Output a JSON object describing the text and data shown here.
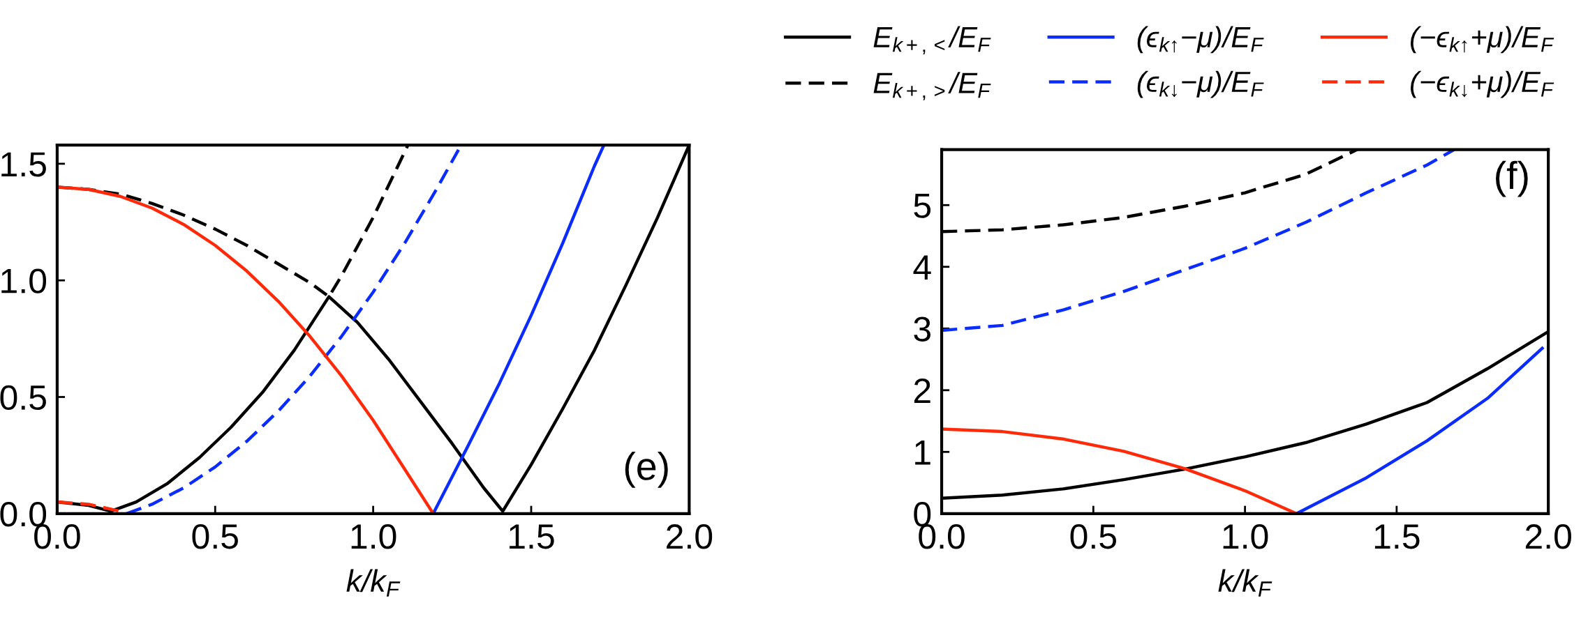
{
  "chart_data": [
    {
      "type": "line",
      "xlabel": "k/k$_{F}$",
      "xlim": [
        0,
        2.0
      ],
      "ylim": [
        0,
        1.58
      ],
      "xticks": [
        {
          "value": 0,
          "label": "0.0"
        },
        {
          "value": 0.5,
          "label": "0.5"
        },
        {
          "value": 1,
          "label": "1.0"
        },
        {
          "value": 1.5,
          "label": "1.5"
        },
        {
          "value": 2,
          "label": "2.0"
        }
      ],
      "yticks": [
        {
          "value": 0,
          "label": "0.0"
        },
        0.5,
        {
          "value": 1,
          "label": "1.0"
        },
        1.5
      ],
      "legend": "top right",
      "grid": false,
      "annotations": [
        "(e)"
      ],
      "series": [
        {
          "name": "E$_{k+,<}$/E$_{F}$",
          "color": "#000000",
          "line_style": "solid",
          "x": [
            0,
            0.1,
            0.17,
            0.25,
            0.35,
            0.45,
            0.55,
            0.65,
            0.75,
            0.86,
            0.95,
            1.05,
            1.15,
            1.25,
            1.35,
            1.41,
            1.5,
            1.6,
            1.7,
            1.8,
            1.9,
            2.0
          ],
          "values": [
            0.05,
            0.035,
            0.01,
            0.05,
            0.13,
            0.24,
            0.37,
            0.52,
            0.7,
            0.93,
            0.82,
            0.66,
            0.48,
            0.3,
            0.11,
            0.01,
            0.21,
            0.45,
            0.7,
            0.98,
            1.27,
            1.58
          ]
        },
        {
          "name": "E$_{k+,>}$/E$_{F}$",
          "color": "#000000",
          "line_style": "dashed",
          "x": [
            0,
            0.1,
            0.2,
            0.3,
            0.4,
            0.5,
            0.6,
            0.7,
            0.8,
            0.86,
            0.9,
            1.0,
            1.11
          ],
          "values": [
            1.4,
            1.39,
            1.37,
            1.33,
            1.28,
            1.22,
            1.15,
            1.07,
            0.99,
            0.93,
            1.02,
            1.27,
            1.58
          ]
        },
        {
          "name": "(ϵ$_{k↑}$−μ)/E$_{F}$",
          "color": "#0a2cff",
          "line_style": "solid",
          "x": [
            1.19,
            1.3,
            1.4,
            1.5,
            1.6,
            1.7,
            1.73
          ],
          "values": [
            0,
            0.29,
            0.56,
            0.85,
            1.16,
            1.49,
            1.58
          ]
        },
        {
          "name": "(ϵ$_{k↓}$−μ)/E$_{F}$",
          "color": "#0a2cff",
          "line_style": "dashed",
          "x": [
            0.22,
            0.3,
            0.4,
            0.5,
            0.6,
            0.7,
            0.8,
            0.9,
            1.0,
            1.1,
            1.2,
            1.27
          ],
          "values": [
            0,
            0.04,
            0.11,
            0.2,
            0.31,
            0.44,
            0.59,
            0.76,
            0.95,
            1.16,
            1.39,
            1.56
          ]
        },
        {
          "name": "(−ϵ$_{k↑}$+μ)/E$_{F}$",
          "color": "#ff2a0a",
          "line_style": "solid",
          "x": [
            0,
            0.1,
            0.2,
            0.3,
            0.4,
            0.5,
            0.6,
            0.7,
            0.8,
            0.9,
            1.0,
            1.1,
            1.19
          ],
          "values": [
            1.4,
            1.39,
            1.36,
            1.31,
            1.24,
            1.15,
            1.04,
            0.91,
            0.76,
            0.59,
            0.4,
            0.19,
            0
          ]
        },
        {
          "name": "(−ϵ$_{k↓}$+μ)/E$_{F}$",
          "color": "#ff2a0a",
          "line_style": "dashed",
          "x": [
            0,
            0.1,
            0.2,
            0.22
          ],
          "values": [
            0.05,
            0.04,
            0.01,
            0
          ]
        }
      ]
    },
    {
      "type": "line",
      "xlabel": "k/k$_{F}$",
      "xlim": [
        0,
        2.0
      ],
      "ylim": [
        0,
        5.9
      ],
      "xticks": [
        {
          "value": 0,
          "label": "0.0"
        },
        {
          "value": 0.5,
          "label": "0.5"
        },
        {
          "value": 1,
          "label": "1.0"
        },
        {
          "value": 1.5,
          "label": "1.5"
        },
        {
          "value": 2,
          "label": "2.0"
        }
      ],
      "yticks": [
        0,
        1,
        2,
        3,
        4,
        5
      ],
      "grid": false,
      "annotations": [
        "(f)"
      ],
      "series": [
        {
          "color": "#000000",
          "line_style": "solid",
          "x": [
            0,
            0.2,
            0.4,
            0.6,
            0.8,
            1.0,
            1.2,
            1.4,
            1.6,
            1.8,
            2.0
          ],
          "values": [
            0.25,
            0.3,
            0.4,
            0.55,
            0.72,
            0.92,
            1.15,
            1.45,
            1.8,
            2.35,
            2.95
          ]
        },
        {
          "color": "#000000",
          "line_style": "dashed",
          "x": [
            0,
            0.2,
            0.4,
            0.6,
            0.8,
            1.0,
            1.2,
            1.37
          ],
          "values": [
            4.57,
            4.6,
            4.68,
            4.8,
            4.98,
            5.2,
            5.5,
            5.9
          ]
        },
        {
          "color": "#0a2cff",
          "line_style": "solid",
          "x": [
            1.17,
            1.4,
            1.6,
            1.8,
            1.98
          ],
          "values": [
            0,
            0.58,
            1.18,
            1.87,
            2.68
          ]
        },
        {
          "color": "#0a2cff",
          "line_style": "dashed",
          "x": [
            0,
            0.2,
            0.4,
            0.6,
            0.8,
            1.0,
            1.2,
            1.4,
            1.6,
            1.69
          ],
          "values": [
            2.97,
            3.05,
            3.3,
            3.6,
            3.95,
            4.3,
            4.72,
            5.2,
            5.65,
            5.9
          ]
        },
        {
          "color": "#ff2a0a",
          "line_style": "solid",
          "x": [
            0,
            0.2,
            0.4,
            0.6,
            0.8,
            1.0,
            1.17
          ],
          "values": [
            1.37,
            1.33,
            1.21,
            1.01,
            0.73,
            0.37,
            0
          ]
        }
      ]
    }
  ]
}
